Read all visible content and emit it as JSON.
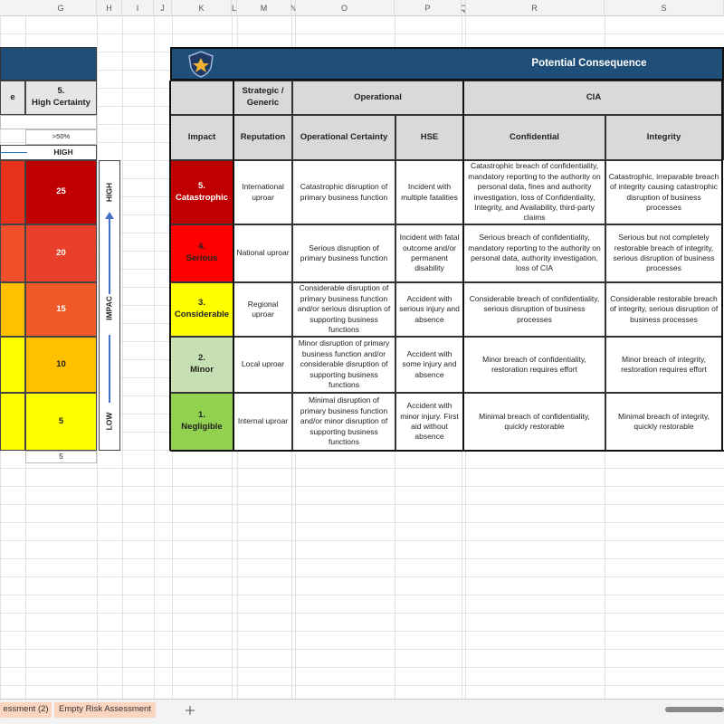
{
  "column_headers": [
    "G",
    "H",
    "I",
    "J",
    "K",
    "L",
    "M",
    "N",
    "O",
    "P",
    "Q",
    "R",
    "S"
  ],
  "left_matrix": {
    "header_partial": "e",
    "header_col": "5.\nHigh Certainty",
    "percent": ">50%",
    "likelihood_label": "HIGH",
    "values": [
      "25",
      "20",
      "15",
      "10",
      "5"
    ],
    "footer": "5",
    "axis_high": "HIGH",
    "axis_mid": "IMPAC",
    "axis_low": "LOW"
  },
  "consequence_table": {
    "title": "Potential Consequence",
    "groups": [
      "Strategic / Generic",
      "Operational",
      "CIA"
    ],
    "headers": [
      "Impact",
      "Reputation",
      "Operational Certainty",
      "HSE",
      "Confidential",
      "Integrity"
    ],
    "rows": [
      [
        "5.\nCatastrophic",
        "International uproar",
        "Catastrophic disruption of primary business function",
        "Incident with multiple fatalities",
        "Catastrophic breach of confidentiality, mandatory reporting to the authority on personal data, fines and authority investigation, loss of Confidentiality, Integrity, and Availability, third-party claims",
        "Catastrophic, irreparable breach of integrity causing catastrophic disruption of business processes"
      ],
      [
        "4.\nSerious",
        "National uproar",
        "Serious disruption of primary business function",
        "Incident with fatal outcome and/or permanent disability",
        "Serious breach of confidentiality, mandatory reporting to the authority on personal data, authority investigation, loss of CIA",
        "Serious but not completely restorable breach of integrity, serious disruption of business processes"
      ],
      [
        "3.\nConsiderable",
        "Regional uproar",
        "Considerable disruption of primary business function and/or serious disruption of supporting business functions",
        "Accident with serious injury and absence",
        "Considerable breach of confidentiality, serious disruption of business processes",
        "Considerable restorable breach of integrity, serious disruption of business processes"
      ],
      [
        "2.\nMinor",
        "Local uproar",
        "Minor disruption of primary business function and/or considerable disruption of supporting business functions",
        "Accident with some injury and absence",
        "Minor breach of confidentiality, restoration requires effort",
        "Minor breach of integrity, restoration requires effort"
      ],
      [
        "1.\nNegligible",
        "Internal uproar",
        "Minimal disruption of primary business function and/or minor disruption of supporting business functions",
        "Accident with minor injury. First aid without absence",
        "Minimal breach of confidentiality, quickly restorable",
        "Minimal breach of integrity, quickly restorable"
      ]
    ]
  },
  "sheet_tabs": [
    "essment (2)",
    "Empty Risk Assessment"
  ]
}
